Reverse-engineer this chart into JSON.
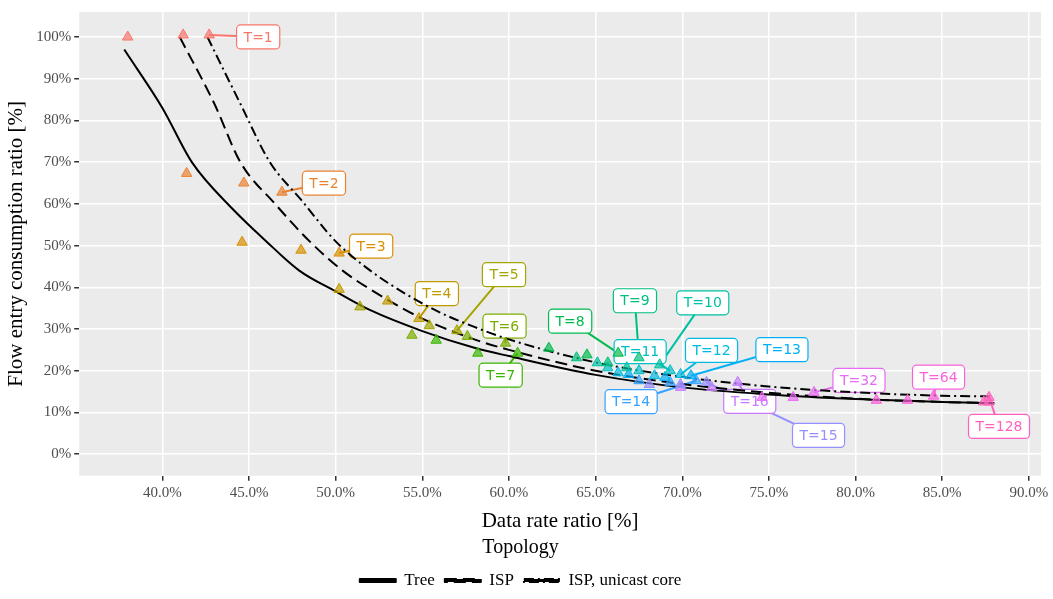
{
  "chart_data": {
    "type": "scatter",
    "xlabel": "Data rate ratio [%]",
    "ylabel": "Flow entry consumption ratio [%]",
    "legend_title": "Topology",
    "legend": "bottom",
    "grid": true,
    "marker": "triangle",
    "xlim": [
      35.2,
      90.7
    ],
    "ylim": [
      -5.2,
      106
    ],
    "xticks": [
      {
        "value": 40,
        "label": "40.0%"
      },
      {
        "value": 45,
        "label": "45.0%"
      },
      {
        "value": 50,
        "label": "50.0%"
      },
      {
        "value": 55,
        "label": "55.0%"
      },
      {
        "value": 60,
        "label": "60.0%"
      },
      {
        "value": 65,
        "label": "65.0%"
      },
      {
        "value": 70,
        "label": "70.0%"
      },
      {
        "value": 75,
        "label": "75.0%"
      },
      {
        "value": 80,
        "label": "80.0%"
      },
      {
        "value": 85,
        "label": "85.0%"
      },
      {
        "value": 90,
        "label": "90.0%"
      }
    ],
    "yticks": [
      {
        "value": 0,
        "label": "0%"
      },
      {
        "value": 10,
        "label": "10%"
      },
      {
        "value": 20,
        "label": "20%"
      },
      {
        "value": 30,
        "label": "30%"
      },
      {
        "value": 40,
        "label": "40%"
      },
      {
        "value": 50,
        "label": "50%"
      },
      {
        "value": 60,
        "label": "60%"
      },
      {
        "value": 70,
        "label": "70%"
      },
      {
        "value": 80,
        "label": "80%"
      },
      {
        "value": 90,
        "label": "90%"
      },
      {
        "value": 100,
        "label": "100%"
      }
    ],
    "series": [
      {
        "type": "line",
        "name": "Tree",
        "color": "#000000",
        "line_style": "solid",
        "marker": "none",
        "x": [
          37.8,
          40,
          41.7,
          44,
          46,
          47.9,
          50,
          52,
          55,
          58,
          60,
          65,
          70,
          75,
          80,
          85,
          88
        ],
        "values": [
          97,
          83,
          70,
          59,
          51,
          44,
          39,
          34.5,
          29.5,
          25.5,
          23.5,
          19,
          16,
          14.3,
          13.2,
          12.5,
          12.2
        ]
      },
      {
        "type": "line",
        "name": "ISP",
        "color": "#000000",
        "line_style": "dashed",
        "marker": "none",
        "x": [
          41,
          43,
          44.5,
          46.5,
          48.5,
          50.4,
          53,
          55,
          58,
          60,
          65,
          70,
          75,
          80,
          85,
          88
        ],
        "values": [
          100,
          84,
          70,
          60,
          51,
          44,
          37,
          32.5,
          27.5,
          25,
          20,
          16.8,
          14.7,
          13.3,
          12.5,
          12.2
        ]
      },
      {
        "type": "line",
        "name": "ISP, unicast core",
        "color": "#000000",
        "line_style": "dotted",
        "marker": "none",
        "x": [
          42.6,
          44.5,
          46.2,
          48,
          50,
          52,
          54,
          56,
          58,
          60,
          65,
          70,
          75,
          80,
          85,
          88
        ],
        "values": [
          100,
          84,
          70,
          61,
          51,
          44,
          38.5,
          34,
          30.5,
          27.5,
          22,
          18.5,
          16.2,
          14.8,
          14,
          13.8
        ]
      },
      {
        "color": "#f8766d",
        "x": [
          38,
          41.2,
          42.7
        ],
        "values": [
          100,
          100.5,
          100.5
        ]
      },
      {
        "color": "#ea8331",
        "x": [
          41.4,
          44.7,
          46.9
        ],
        "values": [
          67.3,
          65,
          62.8
        ]
      },
      {
        "color": "#d89000",
        "x": [
          44.6,
          48,
          50.2
        ],
        "values": [
          50.8,
          48.9,
          48.2
        ]
      },
      {
        "color": "#c09b00",
        "x": [
          50.2,
          53,
          54.8
        ],
        "values": [
          39.5,
          36.7,
          32.5
        ]
      },
      {
        "color": "#a3a500",
        "x": [
          51.4,
          55.4,
          57
        ],
        "values": [
          35.3,
          30.8,
          29.6
        ]
      },
      {
        "color": "#7cae00",
        "x": [
          54.4,
          57.6,
          59.8
        ],
        "values": [
          28.5,
          28.2,
          26.6
        ]
      },
      {
        "color": "#39b600",
        "x": [
          55.8,
          58.2,
          60.5
        ],
        "values": [
          27.3,
          24.2,
          24.2
        ]
      },
      {
        "color": "#00bb4e",
        "x": [
          62.3,
          64.5,
          66.3
        ],
        "values": [
          25.4,
          23.8,
          24.2
        ]
      },
      {
        "color": "#00bf7d",
        "x": [
          63.9,
          65.7,
          67.5
        ],
        "values": [
          23.1,
          21.9,
          23.1
        ]
      },
      {
        "color": "#00c1a3",
        "x": [
          65.1,
          66.8,
          68.7
        ],
        "values": [
          21.9,
          20.7,
          21.4
        ]
      },
      {
        "color": "#00bfc4",
        "x": [
          65.7,
          67.5,
          69.3
        ],
        "values": [
          20.7,
          20,
          20
        ]
      },
      {
        "color": "#00bae0",
        "x": [
          66.3,
          68.4,
          69.9
        ],
        "values": [
          19.5,
          18.8,
          19.1
        ]
      },
      {
        "color": "#00b0f6",
        "x": [
          66.9,
          69,
          70.5
        ],
        "values": [
          19.1,
          18.4,
          18.8
        ]
      },
      {
        "color": "#35a2ff",
        "x": [
          67.5,
          69.3,
          70.8
        ],
        "values": [
          17.6,
          17.2,
          17.6
        ]
      },
      {
        "color": "#9590ff",
        "x": [
          68.1,
          69.9,
          71.4
        ],
        "values": [
          16.7,
          16.7,
          17.2
        ]
      },
      {
        "color": "#c77cff",
        "x": [
          69.9,
          71.7,
          73.2
        ],
        "values": [
          16,
          16,
          17.2
        ]
      },
      {
        "color": "#e76bf3",
        "x": [
          74.6,
          76.4,
          77.6
        ],
        "values": [
          13.6,
          13.6,
          14.8
        ]
      },
      {
        "color": "#fa62db",
        "x": [
          81.2,
          83,
          84.5
        ],
        "values": [
          12.9,
          12.9,
          13.9
        ]
      },
      {
        "color": "#ff62bc",
        "x": [
          87.4,
          87.7,
          87.7
        ],
        "values": [
          12.5,
          12.5,
          13.6
        ]
      }
    ],
    "annotations": [
      {
        "text": "T=1",
        "x": 42.7,
        "y": 100.5
      },
      {
        "text": "T=2",
        "x": 46.9,
        "y": 62.8
      },
      {
        "text": "T=3",
        "x": 50.2,
        "y": 48.2
      },
      {
        "text": "T=4",
        "x": 54.8,
        "y": 32.5
      },
      {
        "text": "T=5",
        "x": 57,
        "y": 29.6
      },
      {
        "text": "T=6",
        "x": 59.8,
        "y": 26.6
      },
      {
        "text": "T=7",
        "x": 60.5,
        "y": 24.2
      },
      {
        "text": "T=8",
        "x": 66.3,
        "y": 24.2
      },
      {
        "text": "T=9",
        "x": 67.5,
        "y": 23.1
      },
      {
        "text": "T=10",
        "x": 68.7,
        "y": 21.4
      },
      {
        "text": "T=11",
        "x": 69.3,
        "y": 20
      },
      {
        "text": "T=12",
        "x": 69.9,
        "y": 19.1
      },
      {
        "text": "T=13",
        "x": 70.5,
        "y": 18.8
      },
      {
        "text": "T=14",
        "x": 70.8,
        "y": 17.6
      },
      {
        "text": "T=15",
        "x": 71.4,
        "y": 17.2
      },
      {
        "text": "T=16",
        "x": 73.2,
        "y": 17.2
      },
      {
        "text": "T=32",
        "x": 77.6,
        "y": 14.8
      },
      {
        "text": "T=64",
        "x": 84.5,
        "y": 13.9
      },
      {
        "text": "T=128",
        "x": 87.7,
        "y": 13.6
      }
    ]
  }
}
